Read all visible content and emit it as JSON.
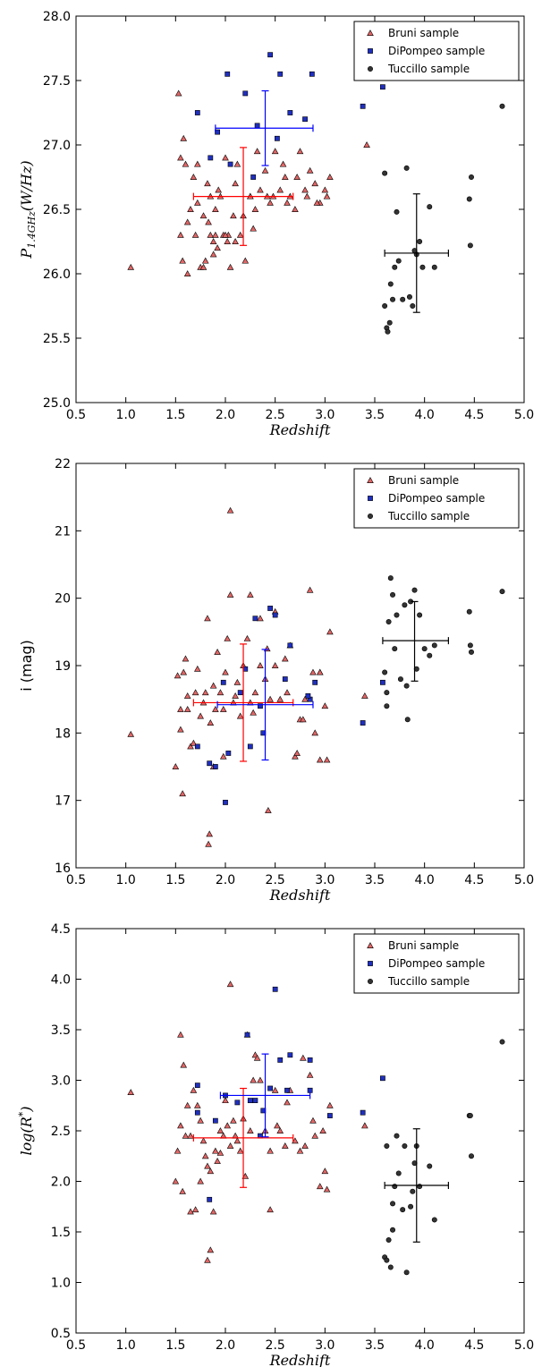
{
  "colors": {
    "bruni": "#e06666",
    "dipompeo": "#1f2fbf",
    "tuccillo": "#333333",
    "bruni_err": "#ff0000",
    "dipompeo_err": "#0000ff",
    "tuccillo_err": "#000000"
  },
  "legend_labels": [
    "Bruni sample",
    "DiPompeo sample",
    "Tuccillo sample"
  ],
  "chart_data": [
    {
      "type": "scatter",
      "xlabel": "Redshift",
      "ylabel": "P_{1.4GHz}(W/Hz)",
      "ylabel_main": "P",
      "ylabel_sub": "1.4GHz",
      "ylabel_rest": "(W/Hz)",
      "xlim": [
        0.5,
        5.0
      ],
      "ylim": [
        25.0,
        28.0
      ],
      "xticks": [
        "0.5",
        "1.0",
        "1.5",
        "2.0",
        "2.5",
        "3.0",
        "3.5",
        "4.0",
        "4.5",
        "5.0"
      ],
      "yticks": [
        "25.0",
        "25.5",
        "26.0",
        "26.5",
        "27.0",
        "27.5",
        "28.0"
      ],
      "legend_position": "top-right",
      "grid": false,
      "series": [
        {
          "name": "Bruni sample",
          "marker": "triangle",
          "x": [
            1.05,
            1.53,
            1.55,
            1.57,
            1.55,
            1.6,
            1.62,
            1.65,
            1.68,
            1.7,
            1.72,
            1.75,
            1.78,
            1.8,
            1.82,
            1.85,
            1.88,
            1.9,
            1.92,
            1.95,
            1.98,
            2.0,
            2.02,
            2.05,
            2.08,
            2.1,
            2.15,
            2.2,
            2.25,
            2.28,
            2.3,
            2.35,
            2.4,
            2.42,
            2.45,
            2.5,
            2.55,
            2.6,
            2.65,
            2.7,
            2.75,
            2.8,
            2.85,
            2.9,
            2.95,
            3.0,
            3.05,
            1.58,
            1.62,
            1.72,
            1.78,
            1.83,
            1.88,
            1.93,
            2.03,
            2.12,
            2.18,
            2.25,
            2.32,
            2.48,
            2.58,
            2.62,
            2.72,
            2.82,
            2.92,
            3.02,
            3.42,
            1.85,
            1.9,
            2.0,
            2.1
          ],
          "y": [
            26.05,
            27.4,
            26.9,
            26.1,
            26.3,
            26.85,
            26.4,
            26.5,
            26.75,
            26.3,
            26.55,
            26.05,
            26.45,
            26.1,
            26.7,
            26.3,
            26.15,
            26.5,
            26.2,
            26.6,
            26.3,
            26.9,
            26.25,
            26.05,
            26.45,
            26.7,
            26.3,
            26.1,
            26.6,
            26.35,
            26.5,
            26.65,
            26.8,
            26.6,
            26.55,
            26.95,
            26.65,
            26.75,
            26.6,
            26.5,
            26.95,
            26.65,
            26.8,
            26.7,
            26.55,
            26.65,
            26.75,
            27.05,
            26.0,
            26.85,
            26.05,
            26.4,
            26.25,
            26.65,
            26.3,
            26.85,
            26.45,
            26.6,
            26.95,
            26.6,
            26.85,
            26.55,
            26.75,
            26.6,
            26.55,
            26.6,
            27.0,
            26.6,
            26.3,
            26.3,
            26.25
          ]
        },
        {
          "name": "DiPompeo sample",
          "marker": "square",
          "x": [
            1.72,
            1.92,
            2.02,
            2.2,
            2.32,
            2.45,
            2.55,
            2.65,
            2.8,
            2.87,
            3.58,
            3.38,
            1.85,
            2.05,
            2.28,
            2.52
          ],
          "y": [
            27.25,
            27.1,
            27.55,
            27.4,
            27.15,
            27.7,
            27.55,
            27.25,
            27.2,
            27.55,
            27.45,
            27.3,
            26.9,
            26.85,
            26.75,
            27.05
          ]
        },
        {
          "name": "Tuccillo sample",
          "marker": "circle",
          "x": [
            3.6,
            3.62,
            3.63,
            3.65,
            3.68,
            3.7,
            3.72,
            3.78,
            3.82,
            3.85,
            3.88,
            3.92,
            3.95,
            3.98,
            4.05,
            4.1,
            4.45,
            4.47,
            4.78,
            3.6,
            3.66,
            3.74,
            3.9,
            4.46
          ],
          "y": [
            25.75,
            25.58,
            25.55,
            25.62,
            25.8,
            26.05,
            26.48,
            25.8,
            26.82,
            25.82,
            25.75,
            26.15,
            26.25,
            26.05,
            26.52,
            26.05,
            26.58,
            26.75,
            27.3,
            26.78,
            25.92,
            26.1,
            26.18,
            26.22
          ]
        }
      ],
      "errorbars": [
        {
          "name": "Bruni sample",
          "x": 2.18,
          "y": 26.6,
          "xerr": [
            1.68,
            2.68
          ],
          "yerr": [
            26.22,
            26.98
          ]
        },
        {
          "name": "DiPompeo sample",
          "x": 2.4,
          "y": 27.13,
          "xerr": [
            1.9,
            2.88
          ],
          "yerr": [
            26.84,
            27.42
          ]
        },
        {
          "name": "Tuccillo sample",
          "x": 3.92,
          "y": 26.16,
          "xerr": [
            3.6,
            4.24
          ],
          "yerr": [
            25.7,
            26.62
          ]
        }
      ]
    },
    {
      "type": "scatter",
      "xlabel": "Redshift",
      "ylabel": "i (mag)",
      "xlim": [
        0.5,
        5.0
      ],
      "ylim": [
        16.0,
        22.0
      ],
      "xticks": [
        "0.5",
        "1.0",
        "1.5",
        "2.0",
        "2.5",
        "3.0",
        "3.5",
        "4.0",
        "4.5",
        "5.0"
      ],
      "yticks": [
        "16",
        "17",
        "18",
        "19",
        "20",
        "21",
        "22"
      ],
      "legend_position": "top-right",
      "grid": false,
      "series": [
        {
          "name": "Bruni sample",
          "marker": "triangle",
          "x": [
            1.05,
            1.5,
            1.52,
            1.55,
            1.57,
            1.58,
            1.6,
            1.62,
            1.65,
            1.68,
            1.7,
            1.72,
            1.75,
            1.78,
            1.8,
            1.82,
            1.85,
            1.88,
            1.9,
            1.92,
            1.95,
            1.98,
            2.0,
            2.02,
            2.05,
            2.08,
            2.1,
            2.15,
            2.18,
            2.22,
            2.25,
            2.28,
            2.3,
            2.35,
            2.4,
            2.42,
            2.45,
            2.5,
            2.55,
            2.6,
            2.65,
            2.7,
            2.75,
            2.8,
            2.85,
            2.9,
            2.95,
            3.0,
            3.05,
            2.05,
            1.84,
            1.83,
            2.43,
            2.72,
            2.95,
            3.02,
            3.4,
            1.55,
            1.62,
            1.88,
            1.98,
            2.12,
            2.25,
            2.35,
            2.5,
            2.62,
            2.78,
            2.88,
            2.95
          ],
          "y": [
            17.98,
            17.5,
            18.85,
            18.05,
            17.1,
            18.9,
            19.1,
            18.35,
            17.8,
            17.85,
            18.6,
            18.95,
            18.25,
            18.45,
            18.6,
            19.7,
            18.15,
            17.5,
            18.35,
            19.2,
            18.6,
            17.65,
            18.9,
            19.4,
            20.05,
            18.45,
            18.55,
            18.25,
            19.0,
            19.4,
            20.05,
            18.3,
            18.6,
            19.0,
            18.8,
            19.25,
            18.5,
            19.8,
            18.5,
            19.1,
            19.3,
            17.65,
            18.2,
            18.5,
            20.12,
            18.0,
            17.6,
            18.4,
            19.5,
            21.3,
            16.5,
            16.35,
            16.85,
            17.7,
            18.9,
            17.6,
            18.55,
            18.35,
            18.55,
            18.7,
            18.35,
            18.75,
            18.45,
            19.7,
            19.0,
            18.6,
            18.2,
            18.9,
            18.9
          ]
        },
        {
          "name": "DiPompeo sample",
          "marker": "square",
          "x": [
            1.72,
            1.84,
            1.9,
            1.98,
            2.03,
            2.2,
            2.25,
            2.3,
            2.38,
            2.45,
            2.5,
            2.65,
            2.85,
            2.9,
            3.58,
            3.38,
            2.0,
            2.15,
            2.35,
            2.6,
            2.83
          ],
          "y": [
            17.8,
            17.55,
            17.5,
            18.75,
            17.7,
            18.95,
            17.8,
            19.7,
            18.0,
            19.85,
            19.75,
            19.3,
            18.5,
            18.75,
            18.75,
            18.15,
            16.97,
            18.6,
            18.4,
            18.8,
            18.55
          ]
        },
        {
          "name": "Tuccillo sample",
          "marker": "circle",
          "x": [
            3.6,
            3.62,
            3.64,
            3.66,
            3.7,
            3.72,
            3.76,
            3.8,
            3.83,
            3.86,
            3.9,
            3.92,
            3.95,
            4.0,
            4.05,
            4.1,
            4.45,
            4.47,
            4.78,
            3.62,
            3.68,
            3.82,
            4.46
          ],
          "y": [
            18.9,
            18.6,
            19.65,
            20.3,
            19.25,
            19.75,
            18.8,
            19.9,
            18.2,
            19.95,
            20.12,
            18.95,
            19.75,
            19.25,
            19.15,
            19.3,
            19.8,
            19.2,
            20.1,
            18.4,
            20.05,
            18.7,
            19.3
          ]
        }
      ],
      "errorbars": [
        {
          "name": "Bruni sample",
          "x": 2.18,
          "y": 18.45,
          "xerr": [
            1.68,
            2.68
          ],
          "yerr": [
            17.58,
            19.32
          ]
        },
        {
          "name": "DiPompeo sample",
          "x": 2.4,
          "y": 18.42,
          "xerr": [
            1.92,
            2.88
          ],
          "yerr": [
            17.6,
            19.24
          ]
        },
        {
          "name": "Tuccillo sample",
          "x": 3.9,
          "y": 19.37,
          "xerr": [
            3.58,
            4.24
          ],
          "yerr": [
            18.77,
            19.95
          ]
        }
      ]
    },
    {
      "type": "scatter",
      "xlabel": "Redshift",
      "ylabel": "log(R*)",
      "ylabel_main": "log(R",
      "ylabel_sup": "*",
      "ylabel_rest": ")",
      "xlim": [
        0.5,
        5.0
      ],
      "ylim": [
        0.5,
        4.5
      ],
      "xticks": [
        "0.5",
        "1.0",
        "1.5",
        "2.0",
        "2.5",
        "3.0",
        "3.5",
        "4.0",
        "4.5",
        "5.0"
      ],
      "yticks": [
        "0.5",
        "1.0",
        "1.5",
        "2.0",
        "2.5",
        "3.0",
        "3.5",
        "4.0",
        "4.5"
      ],
      "legend_position": "top-right",
      "grid": false,
      "series": [
        {
          "name": "Bruni sample",
          "marker": "triangle",
          "x": [
            1.05,
            1.5,
            1.52,
            1.55,
            1.57,
            1.6,
            1.62,
            1.65,
            1.68,
            1.7,
            1.72,
            1.75,
            1.78,
            1.8,
            1.82,
            1.85,
            1.88,
            1.9,
            1.92,
            1.95,
            1.98,
            2.0,
            2.02,
            2.05,
            2.08,
            2.1,
            2.15,
            2.2,
            2.22,
            2.25,
            2.28,
            2.3,
            2.35,
            2.4,
            2.45,
            2.5,
            2.55,
            2.6,
            2.65,
            2.7,
            2.75,
            2.8,
            2.85,
            2.9,
            2.95,
            3.0,
            3.05,
            3.4,
            2.05,
            1.55,
            1.82,
            1.85,
            2.45,
            3.02,
            1.58,
            1.65,
            1.75,
            1.95,
            2.12,
            2.18,
            2.32,
            2.52,
            2.62,
            2.78,
            2.88,
            2.98
          ],
          "y": [
            2.88,
            2.0,
            2.3,
            2.55,
            1.9,
            2.45,
            2.75,
            1.7,
            2.9,
            1.72,
            2.75,
            2.0,
            2.4,
            2.25,
            2.15,
            2.1,
            1.7,
            2.3,
            2.2,
            2.5,
            2.45,
            2.8,
            2.55,
            2.35,
            2.6,
            2.45,
            2.3,
            2.05,
            3.45,
            2.5,
            3.0,
            3.25,
            3.0,
            2.5,
            2.3,
            2.9,
            2.5,
            2.35,
            2.9,
            2.4,
            2.3,
            2.35,
            3.05,
            2.45,
            1.95,
            2.1,
            2.75,
            2.55,
            3.95,
            3.45,
            1.22,
            1.32,
            1.72,
            1.92,
            3.15,
            2.45,
            2.6,
            2.28,
            2.4,
            2.62,
            3.22,
            2.55,
            2.78,
            3.22,
            2.6,
            2.5
          ]
        },
        {
          "name": "DiPompeo sample",
          "marker": "square",
          "x": [
            1.72,
            1.84,
            1.9,
            2.0,
            2.22,
            2.25,
            2.3,
            2.38,
            2.5,
            2.55,
            2.65,
            2.85,
            3.58,
            3.38,
            1.72,
            2.12,
            2.35,
            2.45,
            2.62,
            2.85,
            3.05
          ],
          "y": [
            2.95,
            1.82,
            2.6,
            2.85,
            3.45,
            2.8,
            2.8,
            2.7,
            3.9,
            3.2,
            3.25,
            3.2,
            3.02,
            2.68,
            2.68,
            2.78,
            2.45,
            2.92,
            2.9,
            2.9,
            2.65
          ]
        },
        {
          "name": "Tuccillo sample",
          "marker": "circle",
          "x": [
            3.6,
            3.62,
            3.64,
            3.66,
            3.68,
            3.7,
            3.72,
            3.78,
            3.8,
            3.82,
            3.86,
            3.9,
            3.92,
            3.95,
            4.05,
            4.1,
            4.45,
            4.47,
            4.78,
            3.62,
            3.68,
            3.74,
            3.88,
            4.46
          ],
          "y": [
            1.25,
            1.22,
            1.42,
            1.15,
            1.52,
            1.95,
            2.45,
            1.72,
            2.35,
            1.1,
            1.75,
            2.18,
            2.35,
            1.95,
            2.15,
            1.62,
            2.65,
            2.25,
            3.38,
            2.35,
            1.78,
            2.08,
            1.9,
            2.65
          ]
        }
      ],
      "errorbars": [
        {
          "name": "Bruni sample",
          "x": 2.18,
          "y": 2.43,
          "xerr": [
            1.68,
            2.68
          ],
          "yerr": [
            1.94,
            2.92
          ]
        },
        {
          "name": "DiPompeo sample",
          "x": 2.4,
          "y": 2.85,
          "xerr": [
            1.95,
            2.85
          ],
          "yerr": [
            2.44,
            3.26
          ]
        },
        {
          "name": "Tuccillo sample",
          "x": 3.92,
          "y": 1.96,
          "xerr": [
            3.6,
            4.24
          ],
          "yerr": [
            1.4,
            2.52
          ]
        }
      ]
    }
  ]
}
